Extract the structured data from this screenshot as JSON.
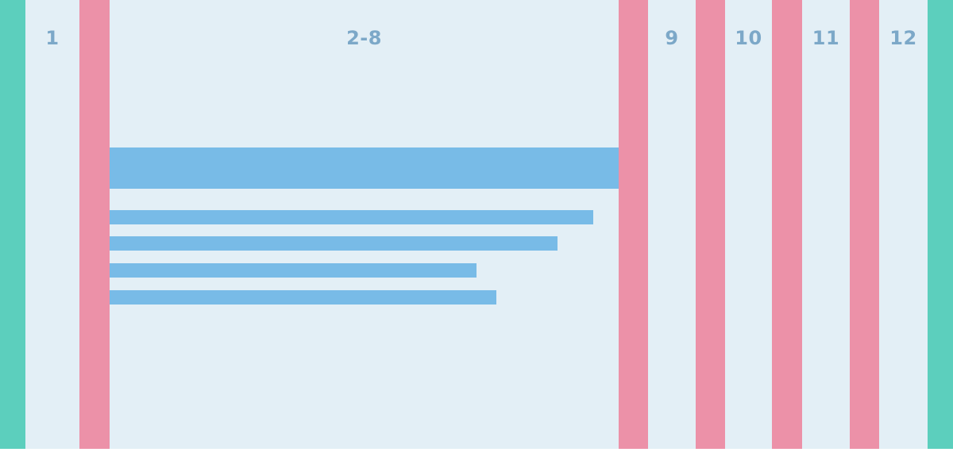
{
  "colors": {
    "background": "#e3eff6",
    "outer_margin": "#5ccfbd",
    "gutter": "#ec91a8",
    "content_bar": "#78bbe7",
    "label": "#7ca8c8"
  },
  "columns": [
    {
      "label": "1"
    },
    {
      "label": "2-8"
    },
    {
      "label": "9"
    },
    {
      "label": "10"
    },
    {
      "label": "11"
    },
    {
      "label": "12"
    }
  ],
  "content": {
    "heading_bar_span": "2-8",
    "text_line_lengths_fraction": [
      0.95,
      0.88,
      0.72,
      0.76
    ]
  }
}
